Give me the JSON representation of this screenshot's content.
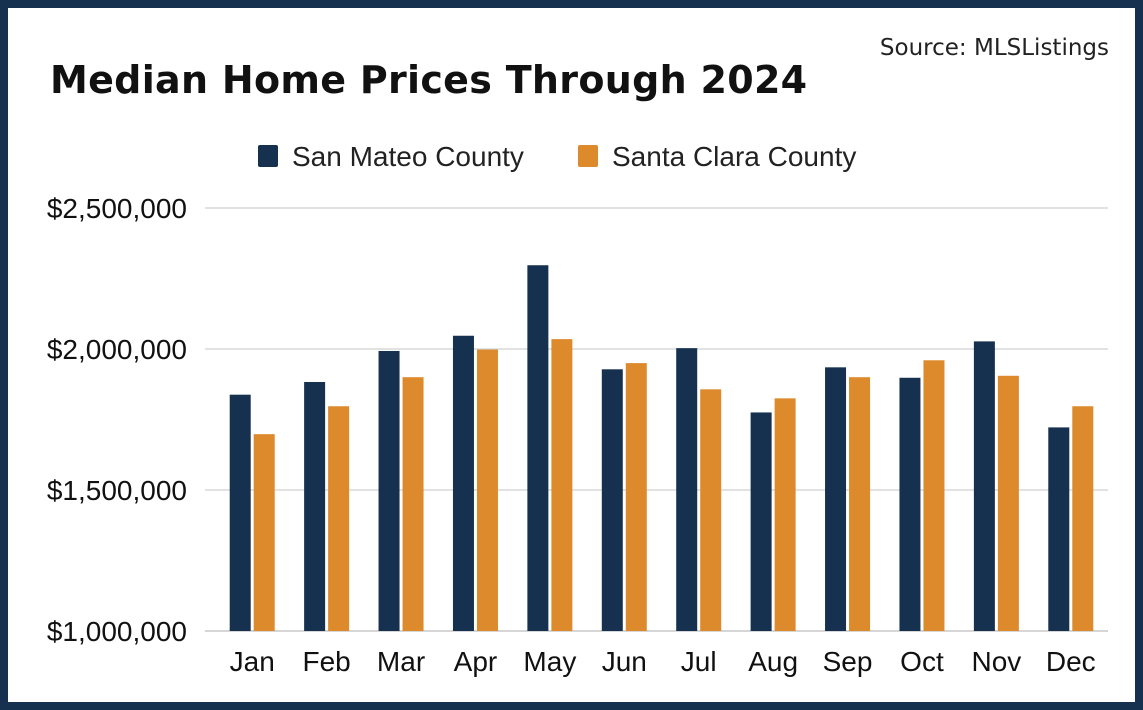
{
  "source": "Source: MLSListings",
  "chart_data": {
    "type": "bar",
    "title": "Median Home Prices Through 2024",
    "categories": [
      "Jan",
      "Feb",
      "Mar",
      "Apr",
      "May",
      "Jun",
      "Jul",
      "Aug",
      "Sep",
      "Oct",
      "Nov",
      "Dec"
    ],
    "series": [
      {
        "name": "San Mateo County",
        "color": "#16304f",
        "values": [
          1838000,
          1883000,
          1993000,
          2047000,
          2297000,
          1928000,
          2003000,
          1775000,
          1935000,
          1898000,
          2027000,
          1722000
        ]
      },
      {
        "name": "Santa Clara County",
        "color": "#dc8a2c",
        "values": [
          1698000,
          1797000,
          1900000,
          1998000,
          2035000,
          1950000,
          1857000,
          1825000,
          1900000,
          1960000,
          1905000,
          1797000
        ]
      }
    ],
    "yticks": [
      "$2,500,000",
      "$2,000,000",
      "$1,500,000",
      "$1,000,000"
    ],
    "ytick_values": [
      2500000,
      2000000,
      1500000,
      1000000
    ],
    "ylim": [
      1000000,
      2500000
    ],
    "grid": true,
    "legend": "top-center"
  }
}
